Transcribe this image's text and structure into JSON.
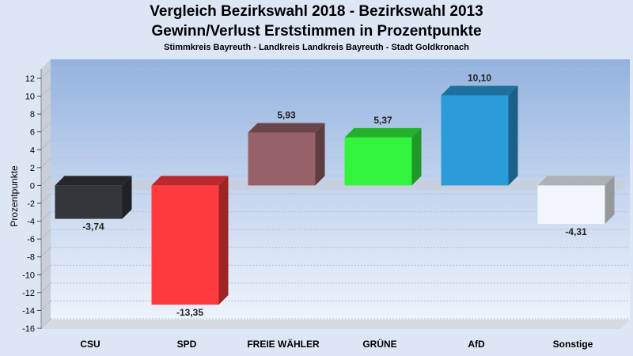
{
  "chart_data": {
    "type": "bar",
    "title": "Vergleich Bezirkswahl 2018 - Bezirkswahl 2013",
    "subtitle": "Gewinn/Verlust Erststimmen in Prozentpunkte",
    "subtitle2": "Stimmkreis Bayreuth - Landkreis Landkreis Bayreuth - Stadt Goldkronach",
    "ylabel": "Prozentpunkte",
    "xlabel": "",
    "ylim": [
      -16,
      12
    ],
    "yticks": [
      "12",
      "10",
      "8",
      "6",
      "4",
      "2",
      "0",
      "-2",
      "-4",
      "-6",
      "-8",
      "-10",
      "-12",
      "-14",
      "-16"
    ],
    "grid": true,
    "categories": [
      "CSU",
      "SPD",
      "FREIE WÄHLER",
      "GRÜNE",
      "AfD",
      "Sonstige"
    ],
    "values": [
      -3.74,
      -13.35,
      5.93,
      5.37,
      10.1,
      -4.31
    ],
    "value_labels": [
      "-3,74",
      "-13,35",
      "5,93",
      "5,37",
      "10,10",
      "-4,31"
    ],
    "colors": [
      "#33363b",
      "#ff3a3f",
      "#966267",
      "#33f43d",
      "#2b9bd9",
      "#f2f6fc"
    ]
  }
}
